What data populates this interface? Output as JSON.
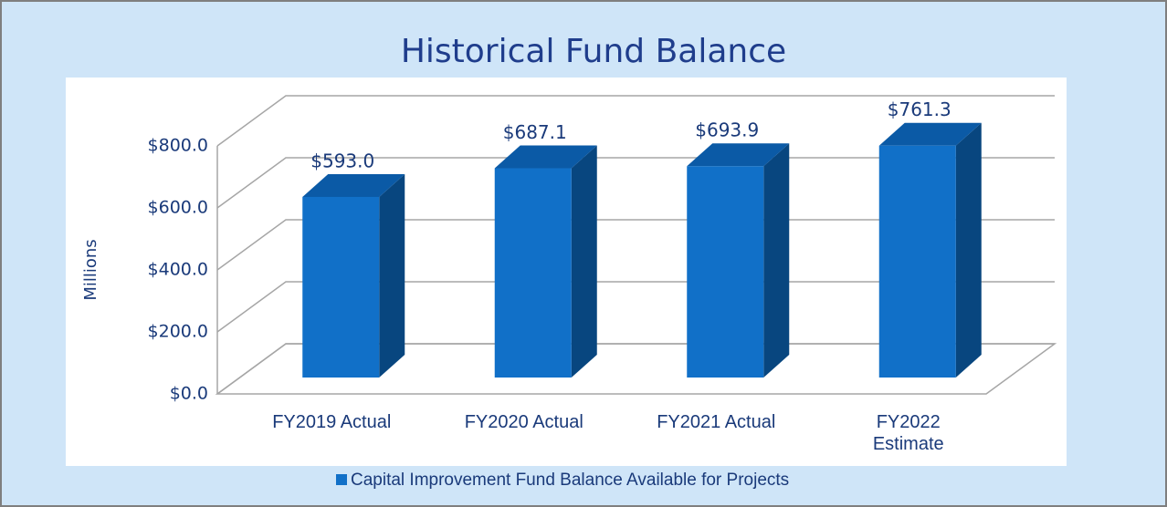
{
  "chart_data": {
    "type": "bar3d",
    "title": "Historical Fund Balance",
    "y_label": "Millions",
    "categories": [
      "FY2019 Actual",
      "FY2020 Actual",
      "FY2021 Actual",
      "FY2022 Estimate"
    ],
    "series": [
      {
        "name": "Capital Improvement Fund Balance Available for Projects",
        "color": "#1170c8",
        "values": [
          593.0,
          687.1,
          693.9,
          761.3
        ],
        "value_labels": [
          "$593.0",
          "$687.1",
          "$693.9",
          "$761.3"
        ]
      }
    ],
    "ylim": [
      0,
      800
    ],
    "yticks": [
      {
        "value": 0,
        "label": "$0.0"
      },
      {
        "value": 200,
        "label": "$200.0"
      },
      {
        "value": 400,
        "label": "$400.0"
      },
      {
        "value": 600,
        "label": "$600.0"
      },
      {
        "value": 800,
        "label": "$800.0"
      }
    ],
    "grid": true,
    "legend": "bottom"
  }
}
